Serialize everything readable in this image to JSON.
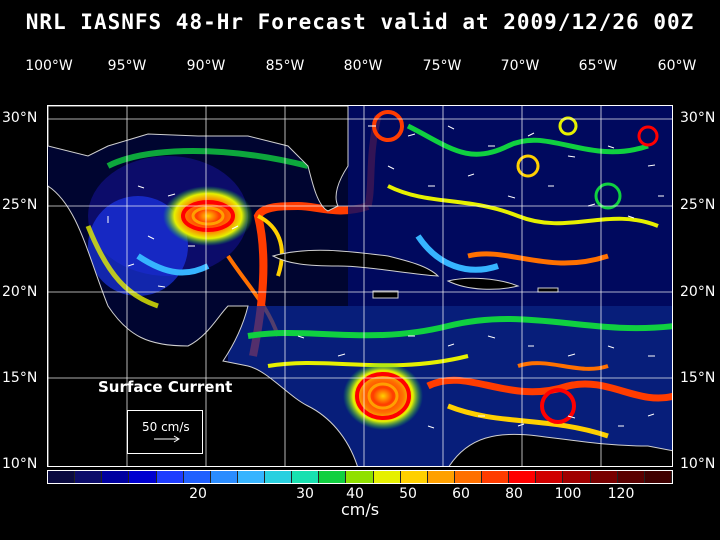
{
  "title": "NRL IASNFS  48-Hr Forecast valid at 2009/12/26 00Z",
  "longitude_labels": [
    "100°W",
    "95°W",
    "90°W",
    "85°W",
    "80°W",
    "75°W",
    "70°W",
    "65°W",
    "60°W"
  ],
  "latitude_labels": [
    "30°N",
    "25°N",
    "20°N",
    "15°N",
    "10°N"
  ],
  "overlay": {
    "label": "Surface Current",
    "reference_vector": "50 cm/s"
  },
  "colorbar": {
    "unit": "cm/s",
    "labels": [
      "20",
      "30",
      "40",
      "50",
      "60",
      "80",
      "100",
      "120"
    ],
    "colors": [
      "#0a0a40",
      "#0c0c6a",
      "#0000a0",
      "#0000d0",
      "#1e3cff",
      "#2060ff",
      "#2a8cff",
      "#36b4ff",
      "#28d0e0",
      "#18e0b0",
      "#10d040",
      "#90e000",
      "#e6f000",
      "#ffd000",
      "#ffa000",
      "#ff7000",
      "#ff3c00",
      "#ff0000",
      "#d00000",
      "#a00000",
      "#780000",
      "#5a0000",
      "#400000"
    ]
  },
  "colors": {
    "background": "#000000",
    "ocean_base": "#000530",
    "land": "#000000",
    "text": "#ffffff"
  }
}
